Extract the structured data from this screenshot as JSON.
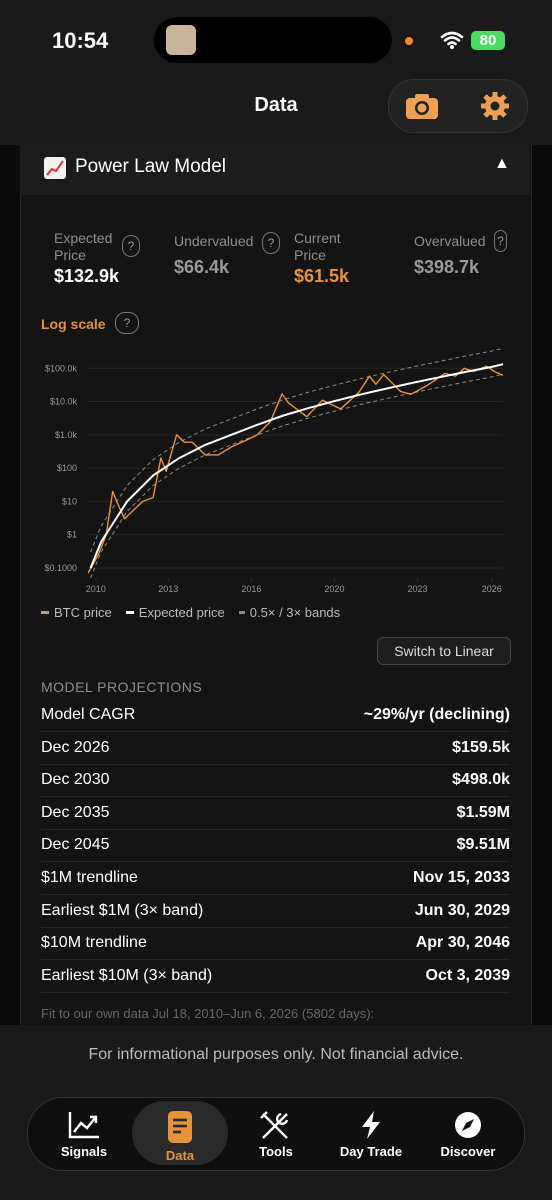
{
  "status_bar": {
    "time": "10:54",
    "battery": "80"
  },
  "header": {
    "title": "Data"
  },
  "card": {
    "title": "Power Law Model",
    "stats": [
      {
        "label": "Expected Price",
        "value": "$132.9k"
      },
      {
        "label": "Undervalued",
        "value": "$66.4k"
      },
      {
        "label": "Current Price",
        "value": "$61.5k"
      },
      {
        "label": "Overvalued",
        "value": "$398.7k"
      }
    ],
    "scale_label": "Log scale",
    "switch_button": "Switch to Linear"
  },
  "chart_data": {
    "type": "line",
    "yscale": "log",
    "xlim": [
      2010.5,
      2026.43
    ],
    "ylim": [
      0.05,
      500000
    ],
    "xticks": [
      {
        "value": 2010.8,
        "label": "2010"
      },
      {
        "value": 2013.58,
        "label": "2013"
      },
      {
        "value": 2016.77,
        "label": "2016"
      },
      {
        "value": 2019.96,
        "label": "2020"
      },
      {
        "value": 2023.15,
        "label": "2023"
      },
      {
        "value": 2026.0,
        "label": "2026"
      }
    ],
    "yticks": [
      {
        "value": 0.1,
        "label": "$0.1000"
      },
      {
        "value": 1,
        "label": "$1"
      },
      {
        "value": 10,
        "label": "$10"
      },
      {
        "value": 100,
        "label": "$100"
      },
      {
        "value": 1000,
        "label": "$1.0k"
      },
      {
        "value": 10000,
        "label": "$10.0k"
      },
      {
        "value": 100000,
        "label": "$100.0k"
      }
    ],
    "grid": true,
    "series": [
      {
        "name": "BTC price",
        "color": "#e8923a",
        "x": [
          2010.5,
          2010.9,
          2011.2,
          2011.45,
          2011.6,
          2011.9,
          2012.2,
          2012.6,
          2013.0,
          2013.3,
          2013.5,
          2013.9,
          2014.2,
          2014.5,
          2015.0,
          2015.5,
          2016.0,
          2016.5,
          2017.0,
          2017.5,
          2017.95,
          2018.2,
          2018.9,
          2019.5,
          2020.2,
          2020.9,
          2021.3,
          2021.55,
          2021.85,
          2022.5,
          2022.9,
          2023.5,
          2024.2,
          2024.6,
          2024.95,
          2025.3,
          2025.8,
          2026.1,
          2026.43
        ],
        "values": [
          0.07,
          0.25,
          1,
          20,
          10,
          3,
          5,
          10,
          13,
          200,
          80,
          1000,
          600,
          600,
          250,
          250,
          430,
          650,
          1000,
          2500,
          17000,
          9000,
          3500,
          11000,
          6000,
          19000,
          58000,
          33000,
          65000,
          20000,
          16500,
          30000,
          70000,
          58000,
          100000,
          80000,
          115000,
          80000,
          61500
        ]
      },
      {
        "name": "Expected price",
        "color": "#ffffff",
        "x": [
          2010.6,
          2011,
          2012,
          2013,
          2014,
          2015,
          2016,
          2017,
          2018,
          2019,
          2020,
          2021,
          2022,
          2023,
          2024,
          2025,
          2026,
          2026.43
        ],
        "values": [
          0.1,
          0.6,
          10,
          60,
          200,
          500,
          1000,
          2000,
          3800,
          6500,
          10500,
          16500,
          25000,
          37000,
          54000,
          78000,
          110000,
          132900
        ]
      },
      {
        "name": "0.5× / 3× bands",
        "color": "#8a8a8a",
        "dashed": true,
        "x": [
          2010.6,
          2011,
          2012,
          2013,
          2014,
          2015,
          2016,
          2017,
          2018,
          2019,
          2020,
          2021,
          2022,
          2023,
          2024,
          2025,
          2026,
          2026.43
        ],
        "lower": [
          0.05,
          0.3,
          5,
          30,
          100,
          250,
          500,
          1000,
          1900,
          3250,
          5250,
          8250,
          12500,
          18500,
          27000,
          39000,
          55000,
          66400
        ],
        "upper": [
          0.3,
          1.8,
          30,
          180,
          600,
          1500,
          3000,
          6000,
          11400,
          19500,
          31500,
          49500,
          75000,
          111000,
          162000,
          234000,
          330000,
          398700
        ]
      }
    ]
  },
  "projections": {
    "heading": "MODEL PROJECTIONS",
    "rows": [
      [
        "Model CAGR",
        "~29%/yr (declining)"
      ],
      [
        "Dec 2026",
        "$159.5k"
      ],
      [
        "Dec 2030",
        "$498.0k"
      ],
      [
        "Dec 2035",
        "$1.59M"
      ],
      [
        "Dec 2045",
        "$9.51M"
      ],
      [
        "$1M trendline",
        "Nov 15, 2033"
      ],
      [
        "Earliest $1M (3× band)",
        "Jun 30, 2029"
      ],
      [
        "$10M trendline",
        "Apr 30, 2046"
      ],
      [
        "Earliest $10M (3× band)",
        "Oct 3, 2039"
      ]
    ],
    "note": "Fit to our own data Jul 18, 2010–Jun 6, 2026 (5802 days):"
  },
  "footer": {
    "disclaimer": "For informational purposes only. Not financial advice."
  },
  "nav": [
    {
      "label": "Signals"
    },
    {
      "label": "Data",
      "active": true
    },
    {
      "label": "Tools"
    },
    {
      "label": "Day Trade"
    },
    {
      "label": "Discover"
    }
  ]
}
